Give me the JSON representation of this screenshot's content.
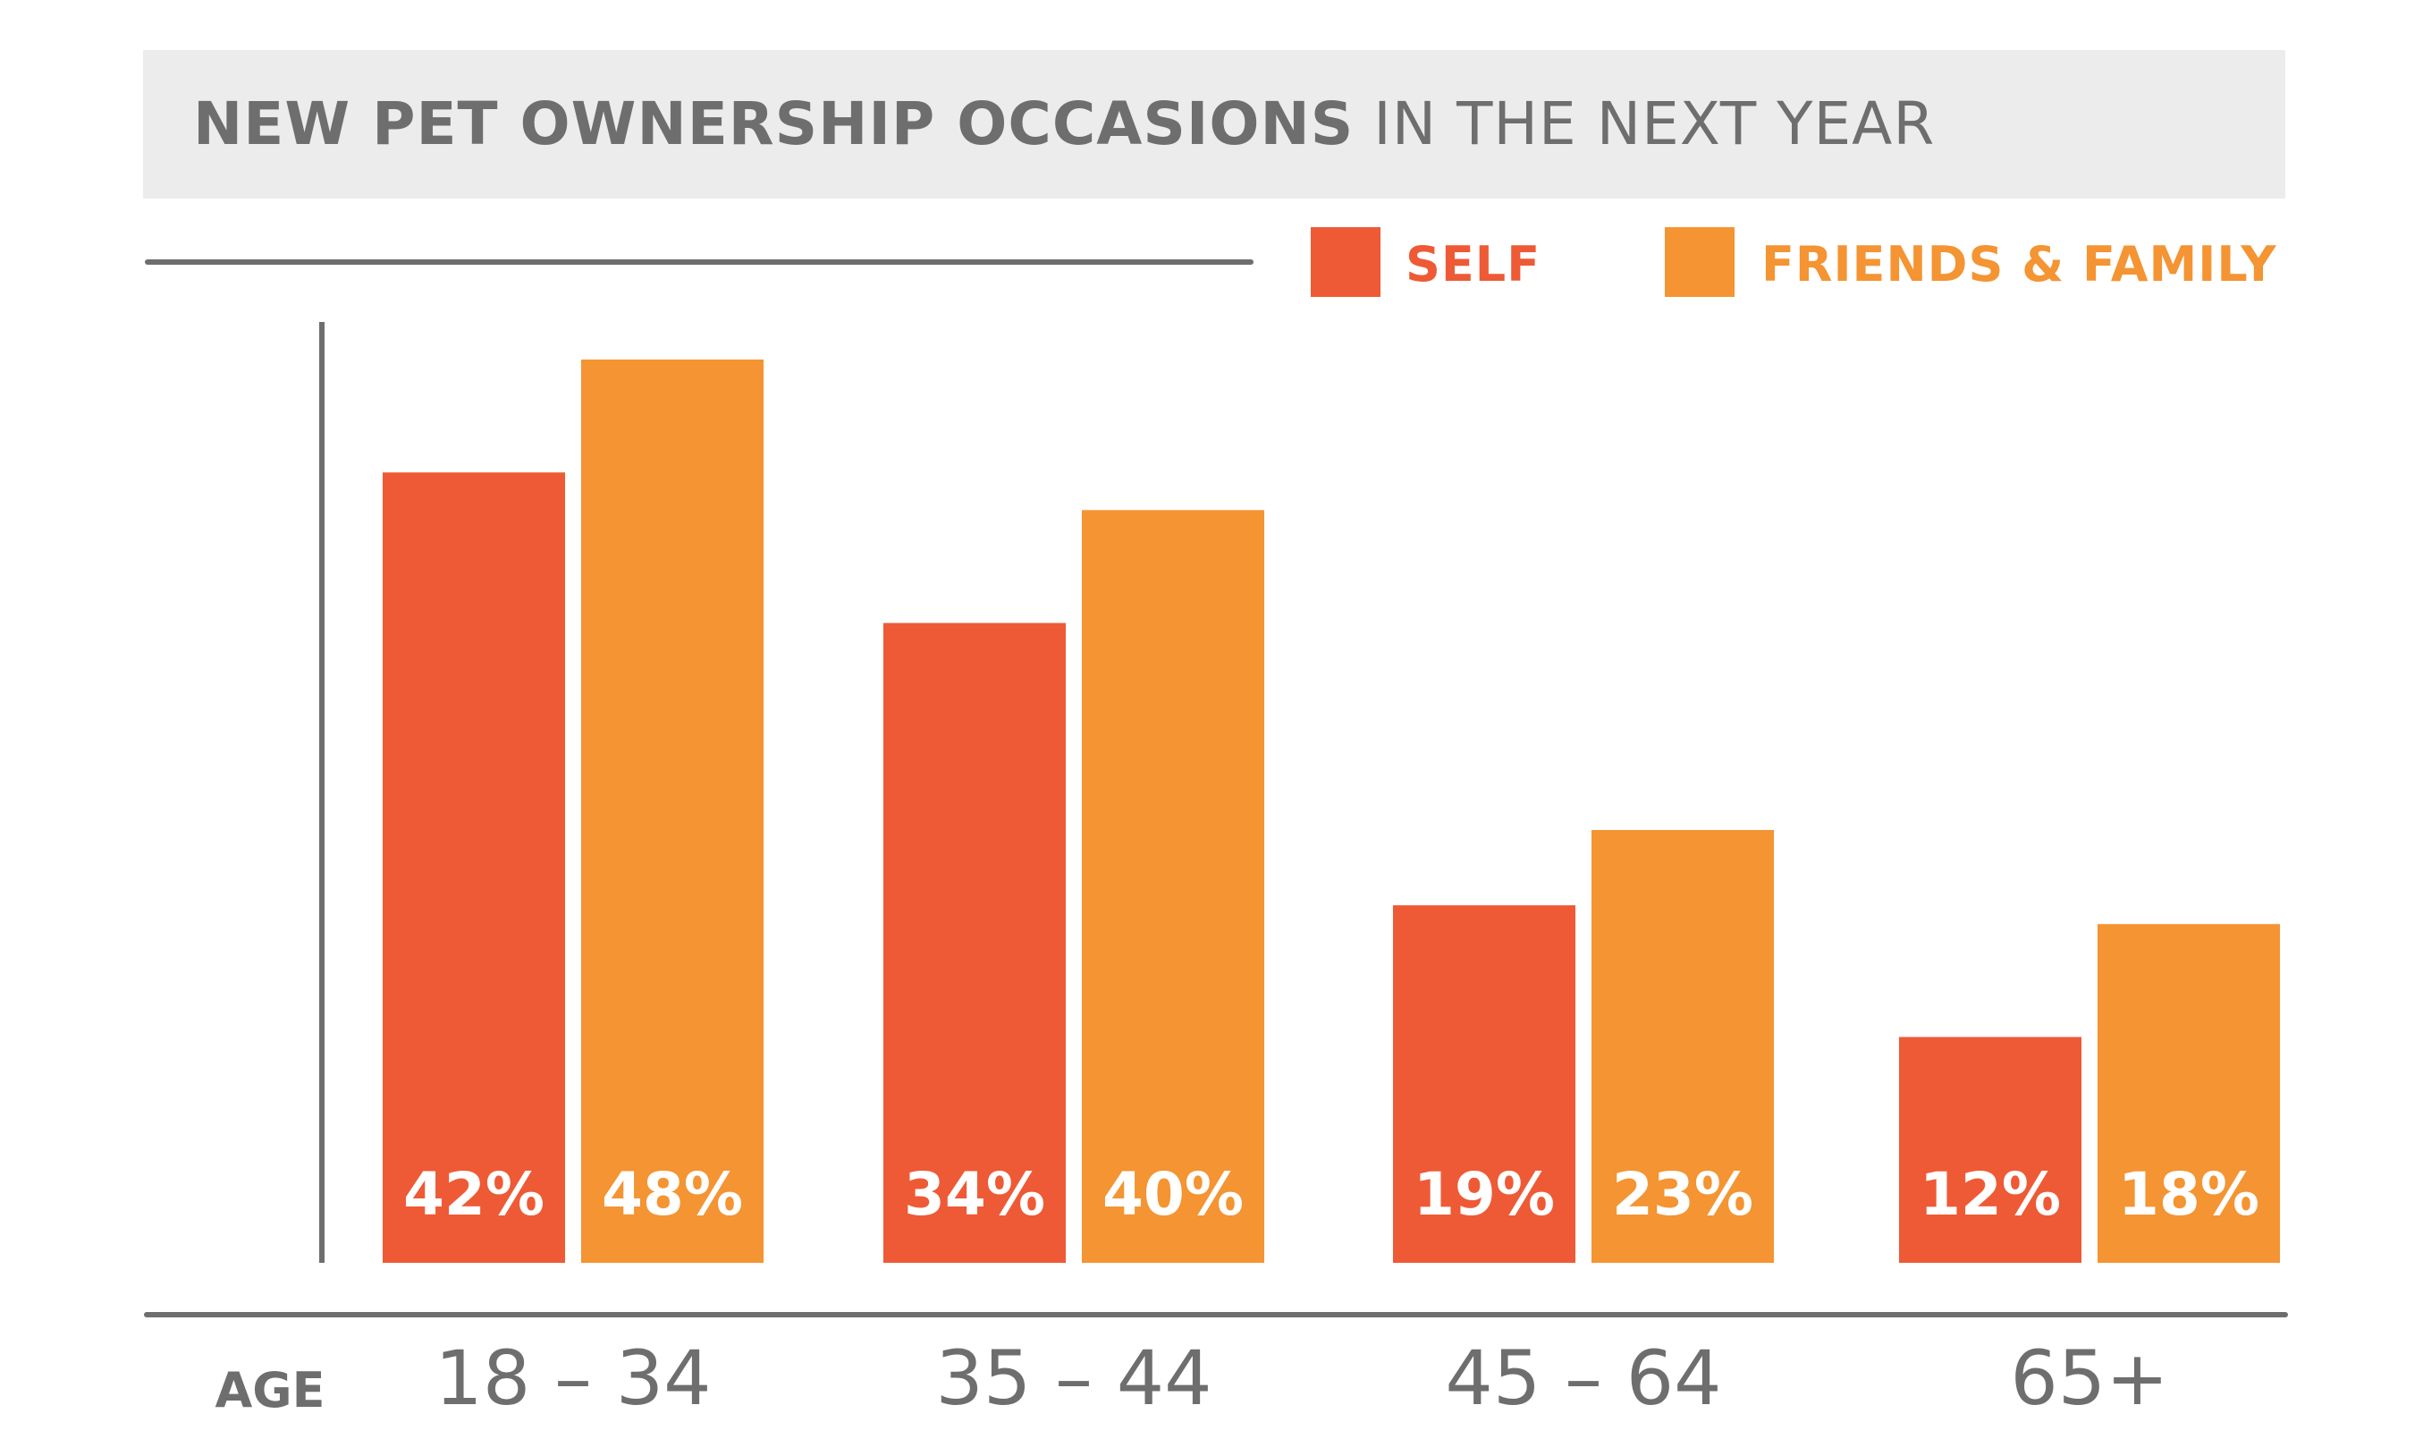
{
  "title": {
    "bold": "NEW PET OWNERSHIP OCCASIONS",
    "rest": " IN THE NEXT YEAR"
  },
  "legend": [
    {
      "label": "SELF",
      "color": "#ee5a35"
    },
    {
      "label": "FRIENDS & FAMILY",
      "color": "#f49432"
    }
  ],
  "axis_label": "AGE",
  "colors": {
    "self": "#ee5a35",
    "friends_family": "#f49432",
    "text_gray": "#6e6e6e",
    "title_band": "#ececec"
  },
  "chart_data": {
    "type": "bar",
    "title": "NEW PET OWNERSHIP OCCASIONS IN THE NEXT YEAR",
    "xlabel": "AGE",
    "ylabel": "",
    "categories": [
      "18 – 34",
      "35 – 44",
      "45 – 64",
      "65+"
    ],
    "series": [
      {
        "name": "SELF",
        "values": [
          42,
          34,
          19,
          12
        ],
        "labels": [
          "42%",
          "34%",
          "19%",
          "12%"
        ]
      },
      {
        "name": "FRIENDS & FAMILY",
        "values": [
          48,
          40,
          23,
          18
        ],
        "labels": [
          "48%",
          "40%",
          "23%",
          "18%"
        ]
      }
    ],
    "ylim": [
      0,
      48
    ],
    "grid": false,
    "legend_position": "top-right"
  }
}
